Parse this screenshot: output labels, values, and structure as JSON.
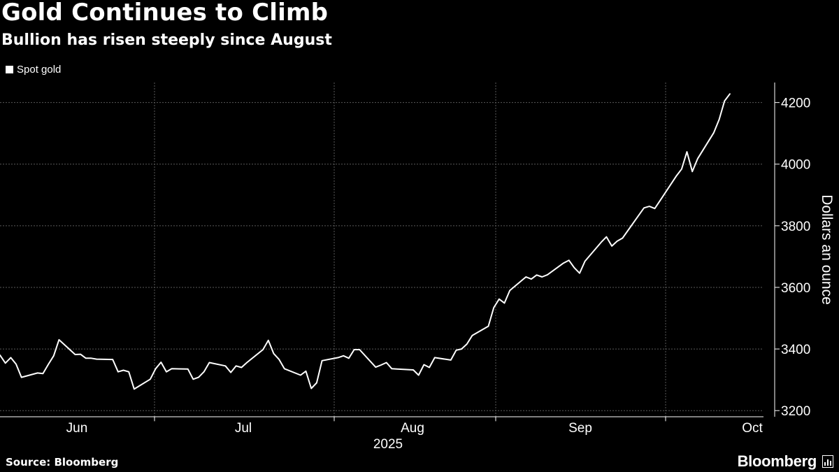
{
  "header": {
    "title": "Gold Continues to Climb",
    "subtitle": "Bullion has risen steeply since August"
  },
  "legend": {
    "label": "Spot gold"
  },
  "footer": {
    "source": "Source: Bloomberg",
    "brand": "Bloomberg"
  },
  "colors": {
    "background": "#000000",
    "line": "#ffffff",
    "grid": "#5a5a5a",
    "text": "#ffffff"
  },
  "chart_data": {
    "type": "line",
    "title": "Gold Continues to Climb",
    "subtitle": "Bullion has risen steeply since August",
    "ylabel": "Dollars an ounce",
    "xlabel": "",
    "ylim": [
      3180,
      4265
    ],
    "y_ticks": [
      3200,
      3400,
      3600,
      3800,
      4000,
      4200
    ],
    "x_tick_labels": [
      "Jun",
      "Jul",
      "Aug",
      "Sep",
      "Oct"
    ],
    "x_year_label": "2025",
    "axis_side": "right",
    "grid": true,
    "legend_position": "top-left",
    "series": [
      {
        "name": "Spot gold",
        "color": "#ffffff",
        "x": [
          "2025-05-26",
          "2025-05-27",
          "2025-05-28",
          "2025-05-29",
          "2025-05-30",
          "2025-06-02",
          "2025-06-03",
          "2025-06-04",
          "2025-06-05",
          "2025-06-06",
          "2025-06-09",
          "2025-06-10",
          "2025-06-11",
          "2025-06-12",
          "2025-06-13",
          "2025-06-16",
          "2025-06-17",
          "2025-06-18",
          "2025-06-19",
          "2025-06-20",
          "2025-06-23",
          "2025-06-24",
          "2025-06-25",
          "2025-06-26",
          "2025-06-27",
          "2025-06-30",
          "2025-07-01",
          "2025-07-02",
          "2025-07-03",
          "2025-07-04",
          "2025-07-07",
          "2025-07-08",
          "2025-07-09",
          "2025-07-10",
          "2025-07-11",
          "2025-07-14",
          "2025-07-15",
          "2025-07-16",
          "2025-07-17",
          "2025-07-18",
          "2025-07-21",
          "2025-07-22",
          "2025-07-23",
          "2025-07-24",
          "2025-07-25",
          "2025-07-28",
          "2025-07-29",
          "2025-07-30",
          "2025-07-31",
          "2025-08-01",
          "2025-08-04",
          "2025-08-05",
          "2025-08-06",
          "2025-08-07",
          "2025-08-08",
          "2025-08-11",
          "2025-08-12",
          "2025-08-13",
          "2025-08-14",
          "2025-08-15",
          "2025-08-18",
          "2025-08-19",
          "2025-08-20",
          "2025-08-21",
          "2025-08-22",
          "2025-08-25",
          "2025-08-26",
          "2025-08-27",
          "2025-08-28",
          "2025-08-29",
          "2025-09-01",
          "2025-09-02",
          "2025-09-03",
          "2025-09-04",
          "2025-09-05",
          "2025-09-08",
          "2025-09-09",
          "2025-09-10",
          "2025-09-11",
          "2025-09-12",
          "2025-09-15",
          "2025-09-16",
          "2025-09-17",
          "2025-09-18",
          "2025-09-19",
          "2025-09-22",
          "2025-09-23",
          "2025-09-24",
          "2025-09-25",
          "2025-09-26",
          "2025-09-29",
          "2025-09-30",
          "2025-10-01",
          "2025-10-02",
          "2025-10-03",
          "2025-10-06",
          "2025-10-07",
          "2025-10-08",
          "2025-10-09",
          "2025-10-10",
          "2025-10-13",
          "2025-10-14"
        ],
        "values": [
          3380,
          3354,
          3372,
          3351,
          3308,
          3322,
          3320,
          3350,
          3378,
          3430,
          3382,
          3383,
          3370,
          3370,
          3367,
          3366,
          3326,
          3331,
          3326,
          3270,
          3302,
          3336,
          3357,
          3326,
          3336,
          3335,
          3302,
          3308,
          3326,
          3356,
          3345,
          3324,
          3345,
          3340,
          3356,
          3398,
          3428,
          3385,
          3366,
          3336,
          3315,
          3328,
          3272,
          3290,
          3362,
          3372,
          3378,
          3370,
          3398,
          3398,
          3341,
          3348,
          3356,
          3336,
          3335,
          3332,
          3315,
          3349,
          3340,
          3372,
          3364,
          3396,
          3400,
          3416,
          3444,
          3474,
          3534,
          3562,
          3549,
          3590,
          3634,
          3627,
          3640,
          3634,
          3641,
          3679,
          3688,
          3664,
          3646,
          3685,
          3746,
          3764,
          3734,
          3750,
          3760,
          3834,
          3858,
          3863,
          3856,
          3882,
          3961,
          3984,
          4040,
          3976,
          4018,
          4102,
          4145,
          4205,
          4228,
          4228,
          4228,
          4228
        ]
      }
    ]
  }
}
